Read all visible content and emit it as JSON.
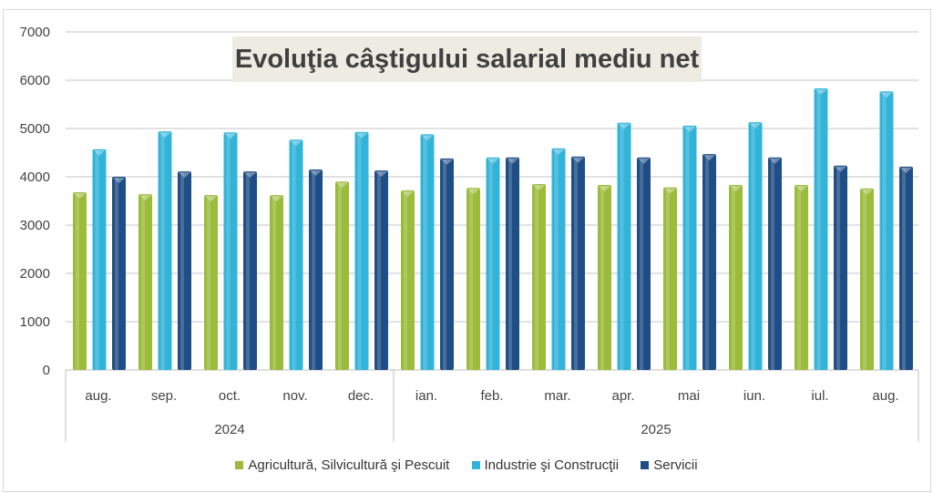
{
  "chart_data": {
    "type": "bar",
    "title": "Evoluţia câştigului salarial mediu  net",
    "categories": [
      "aug.",
      "sep.",
      "oct.",
      "nov.",
      "dec.",
      "ian.",
      "feb.",
      "mar.",
      "apr.",
      "mai",
      "iun.",
      "iul.",
      "aug."
    ],
    "groups": [
      {
        "label": "2024",
        "count": 5
      },
      {
        "label": "2025",
        "count": 8
      }
    ],
    "ylim": [
      0,
      7000
    ],
    "yticks": [
      0,
      1000,
      2000,
      3000,
      4000,
      5000,
      6000,
      7000
    ],
    "grid": true,
    "legend_position": "bottom",
    "series": [
      {
        "name": "Agricultură, Silvicultură şi Pescuit",
        "color": "#9bbb3b",
        "values": [
          3680,
          3640,
          3620,
          3620,
          3900,
          3720,
          3770,
          3850,
          3830,
          3780,
          3830,
          3830,
          3760
        ]
      },
      {
        "name": "Industrie şi Construcţii",
        "color": "#31b4d8",
        "values": [
          4570,
          4940,
          4920,
          4770,
          4930,
          4880,
          4400,
          4590,
          5120,
          5060,
          5130,
          5830,
          5770
        ]
      },
      {
        "name": "Servicii",
        "color": "#1f4e86",
        "values": [
          4000,
          4110,
          4110,
          4150,
          4130,
          4380,
          4400,
          4420,
          4400,
          4470,
          4400,
          4230,
          4210
        ]
      }
    ]
  }
}
